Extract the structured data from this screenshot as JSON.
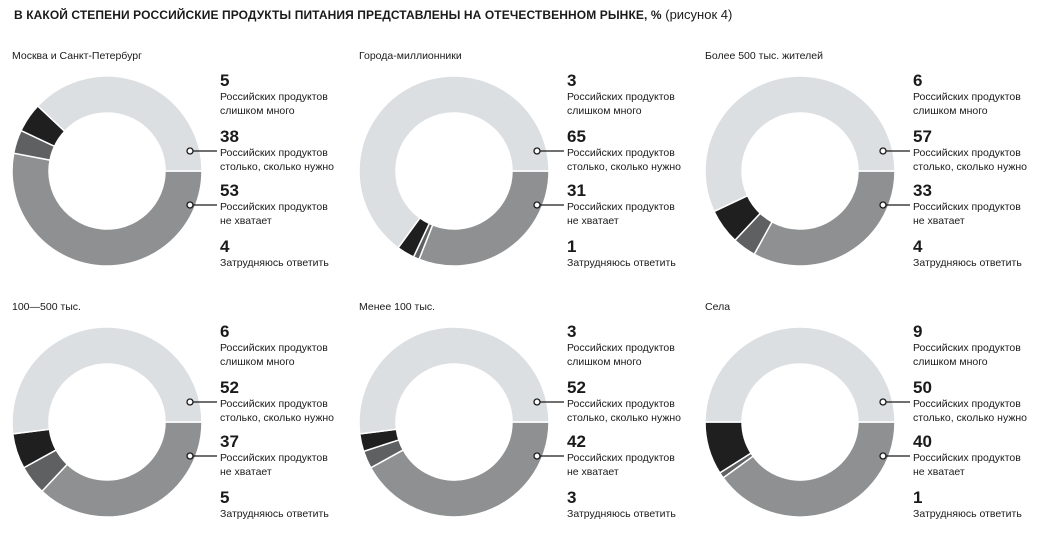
{
  "header": {
    "title": "В КАКОЙ СТЕПЕНИ РОССИЙСКИЕ ПРОДУКТЫ ПИТАНИЯ ПРЕДСТАВЛЕНЫ НА ОТЕЧЕСТВЕННОМ РЫНКЕ, %",
    "subtitle": "(рисунок 4)"
  },
  "colors": {
    "too_many": "#1f1f1f",
    "as_needed": "#dcdfe2",
    "not_enough": "#8f9091",
    "hard_to_say": "#5e6061",
    "connector": "#1a1a1a"
  },
  "labels": {
    "too_many": [
      "Российских продуктов",
      "слишком много"
    ],
    "as_needed": [
      "Российских продуктов",
      "столько, сколько нужно"
    ],
    "not_enough": [
      "Российских продуктов",
      "не хватает"
    ],
    "hard_to_say": [
      "Затрудняюсь ответить"
    ]
  },
  "chart_data": [
    {
      "type": "pie",
      "title": "Москва и Санкт-Петербург",
      "categories": [
        "Российских продуктов слишком много",
        "Российских продуктов столько, сколько нужно",
        "Российских продуктов не хватает",
        "Затрудняюсь ответить"
      ],
      "values": [
        5,
        38,
        53,
        4
      ]
    },
    {
      "type": "pie",
      "title": "Города-миллионники",
      "categories": [
        "Российских продуктов слишком много",
        "Российских продуктов столько, сколько нужно",
        "Российских продуктов не хватает",
        "Затрудняюсь ответить"
      ],
      "values": [
        3,
        65,
        31,
        1
      ]
    },
    {
      "type": "pie",
      "title": "Более 500 тыс. жителей",
      "categories": [
        "Российских продуктов слишком много",
        "Российских продуктов столько, сколько нужно",
        "Российских продуктов не хватает",
        "Затрудняюсь ответить"
      ],
      "values": [
        6,
        57,
        33,
        4
      ]
    },
    {
      "type": "pie",
      "title": "100—500 тыс.",
      "categories": [
        "Российских продуктов слишком много",
        "Российских продуктов столько, сколько нужно",
        "Российских продуктов не хватает",
        "Затрудняюсь ответить"
      ],
      "values": [
        6,
        52,
        37,
        5
      ]
    },
    {
      "type": "pie",
      "title": "Менее 100 тыс.",
      "categories": [
        "Российских продуктов слишком много",
        "Российских продуктов столько, сколько нужно",
        "Российских продуктов не хватает",
        "Затрудняюсь ответить"
      ],
      "values": [
        3,
        52,
        42,
        3
      ]
    },
    {
      "type": "pie",
      "title": "Села",
      "categories": [
        "Российских продуктов слишком много",
        "Российских продуктов столько, сколько нужно",
        "Российских продуктов не хватает",
        "Затрудняюсь ответить"
      ],
      "values": [
        9,
        50,
        40,
        1
      ]
    }
  ]
}
